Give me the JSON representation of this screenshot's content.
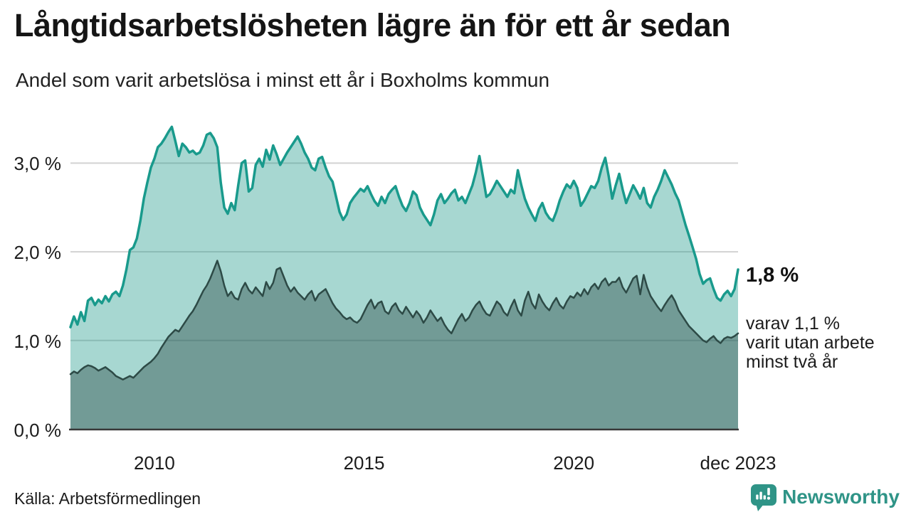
{
  "header": {
    "title": "Långtidsarbetslösheten lägre än för ett år sedan",
    "subtitle": "Andel som varit arbetslösa i minst ett år i Boxholms kommun"
  },
  "chart_data": {
    "type": "area",
    "title": "Långtidsarbetslösheten lägre än för ett år sedan",
    "subtitle": "Andel som varit arbetslösa i minst ett år i Boxholms kommun",
    "unit": "%",
    "x_monthly_from": "2008-01",
    "x_monthly_to": "2023-12",
    "x_tick_labels": [
      "2010",
      "2015",
      "2020",
      "dec 2023"
    ],
    "x_tick_indices": [
      24,
      84,
      144,
      191
    ],
    "y_tick_values": [
      0,
      1,
      2,
      3
    ],
    "y_tick_labels": [
      "0,0 %",
      "1,0 %",
      "2,0 %",
      "3,0 %"
    ],
    "ylim": [
      0,
      3.5
    ],
    "grid": "horizontal-only",
    "legend_position": "none",
    "series": [
      {
        "name": "Andel arbetslösa minst ett år",
        "stroke": "#199a8c",
        "stroke_width": 3.5,
        "fill": "rgba(23,150,134,0.38)",
        "latest_label": "1,8 %",
        "values": [
          1.15,
          1.27,
          1.18,
          1.32,
          1.22,
          1.45,
          1.48,
          1.4,
          1.46,
          1.42,
          1.5,
          1.44,
          1.52,
          1.55,
          1.5,
          1.62,
          1.8,
          2.02,
          2.05,
          2.15,
          2.35,
          2.6,
          2.78,
          2.95,
          3.05,
          3.18,
          3.22,
          3.28,
          3.35,
          3.41,
          3.25,
          3.08,
          3.22,
          3.18,
          3.12,
          3.14,
          3.1,
          3.12,
          3.2,
          3.32,
          3.34,
          3.28,
          3.18,
          2.78,
          2.5,
          2.43,
          2.55,
          2.47,
          2.75,
          3.0,
          3.03,
          2.68,
          2.72,
          2.98,
          3.05,
          2.96,
          3.15,
          3.04,
          3.2,
          3.1,
          2.98,
          3.05,
          3.12,
          3.18,
          3.24,
          3.3,
          3.22,
          3.12,
          3.05,
          2.95,
          2.92,
          3.05,
          3.07,
          2.95,
          2.85,
          2.79,
          2.62,
          2.45,
          2.36,
          2.42,
          2.55,
          2.61,
          2.66,
          2.71,
          2.68,
          2.74,
          2.65,
          2.57,
          2.52,
          2.62,
          2.55,
          2.65,
          2.7,
          2.74,
          2.62,
          2.52,
          2.46,
          2.55,
          2.68,
          2.64,
          2.5,
          2.42,
          2.36,
          2.3,
          2.42,
          2.58,
          2.65,
          2.55,
          2.6,
          2.66,
          2.7,
          2.58,
          2.62,
          2.55,
          2.65,
          2.75,
          2.9,
          3.08,
          2.85,
          2.62,
          2.65,
          2.72,
          2.8,
          2.74,
          2.68,
          2.62,
          2.7,
          2.66,
          2.92,
          2.75,
          2.6,
          2.5,
          2.42,
          2.35,
          2.48,
          2.55,
          2.44,
          2.38,
          2.35,
          2.45,
          2.58,
          2.68,
          2.76,
          2.72,
          2.8,
          2.72,
          2.52,
          2.58,
          2.66,
          2.74,
          2.72,
          2.8,
          2.95,
          3.06,
          2.85,
          2.6,
          2.75,
          2.88,
          2.7,
          2.55,
          2.65,
          2.75,
          2.68,
          2.6,
          2.72,
          2.55,
          2.5,
          2.62,
          2.7,
          2.8,
          2.92,
          2.84,
          2.76,
          2.66,
          2.58,
          2.44,
          2.3,
          2.18,
          2.05,
          1.92,
          1.75,
          1.64,
          1.68,
          1.7,
          1.58,
          1.48,
          1.45,
          1.52,
          1.56,
          1.5,
          1.58,
          1.8
        ]
      },
      {
        "name": "Andel arbetslösa minst två år",
        "stroke": "#2d4a46",
        "stroke_width": 2.5,
        "fill": "rgba(40,72,68,0.42)",
        "latest_label": "1,1 %",
        "values": [
          0.62,
          0.65,
          0.63,
          0.67,
          0.7,
          0.72,
          0.71,
          0.69,
          0.66,
          0.68,
          0.7,
          0.67,
          0.64,
          0.6,
          0.58,
          0.56,
          0.58,
          0.6,
          0.58,
          0.62,
          0.66,
          0.7,
          0.73,
          0.76,
          0.8,
          0.85,
          0.92,
          0.98,
          1.04,
          1.08,
          1.12,
          1.1,
          1.16,
          1.22,
          1.28,
          1.33,
          1.4,
          1.48,
          1.56,
          1.62,
          1.7,
          1.8,
          1.9,
          1.78,
          1.62,
          1.5,
          1.55,
          1.48,
          1.46,
          1.58,
          1.65,
          1.57,
          1.53,
          1.6,
          1.55,
          1.5,
          1.66,
          1.58,
          1.65,
          1.8,
          1.82,
          1.72,
          1.62,
          1.55,
          1.6,
          1.54,
          1.5,
          1.46,
          1.52,
          1.56,
          1.45,
          1.52,
          1.55,
          1.58,
          1.5,
          1.42,
          1.36,
          1.32,
          1.27,
          1.24,
          1.26,
          1.22,
          1.2,
          1.24,
          1.32,
          1.4,
          1.46,
          1.36,
          1.42,
          1.44,
          1.33,
          1.3,
          1.38,
          1.42,
          1.34,
          1.3,
          1.38,
          1.32,
          1.26,
          1.33,
          1.28,
          1.2,
          1.26,
          1.34,
          1.28,
          1.22,
          1.26,
          1.18,
          1.12,
          1.08,
          1.16,
          1.24,
          1.3,
          1.22,
          1.26,
          1.34,
          1.4,
          1.44,
          1.36,
          1.3,
          1.28,
          1.36,
          1.44,
          1.4,
          1.32,
          1.28,
          1.38,
          1.46,
          1.34,
          1.28,
          1.45,
          1.55,
          1.42,
          1.36,
          1.52,
          1.44,
          1.38,
          1.34,
          1.42,
          1.48,
          1.4,
          1.36,
          1.44,
          1.5,
          1.48,
          1.54,
          1.5,
          1.58,
          1.52,
          1.6,
          1.64,
          1.58,
          1.66,
          1.7,
          1.62,
          1.66,
          1.66,
          1.71,
          1.6,
          1.54,
          1.62,
          1.7,
          1.73,
          1.52,
          1.74,
          1.6,
          1.5,
          1.44,
          1.38,
          1.33,
          1.4,
          1.46,
          1.51,
          1.44,
          1.34,
          1.28,
          1.22,
          1.16,
          1.12,
          1.08,
          1.04,
          1.0,
          0.98,
          1.02,
          1.05,
          1.0,
          0.97,
          1.02,
          1.04,
          1.03,
          1.05,
          1.08
        ]
      }
    ],
    "annotations": {
      "latest_value": "1,8 %",
      "sub_lines": [
        "varav 1,1 %",
        "varit utan arbete",
        "minst två år"
      ]
    }
  },
  "footer": {
    "source": "Källa: Arbetsförmedlingen",
    "brand": "Newsworthy"
  },
  "colors": {
    "accent_teal": "#199a8c",
    "dark_series": "#2d4a46",
    "gridline": "#d2d2d2",
    "baseline": "#383838",
    "brand_teal": "#2f9487",
    "text": "#1a1a1a"
  }
}
